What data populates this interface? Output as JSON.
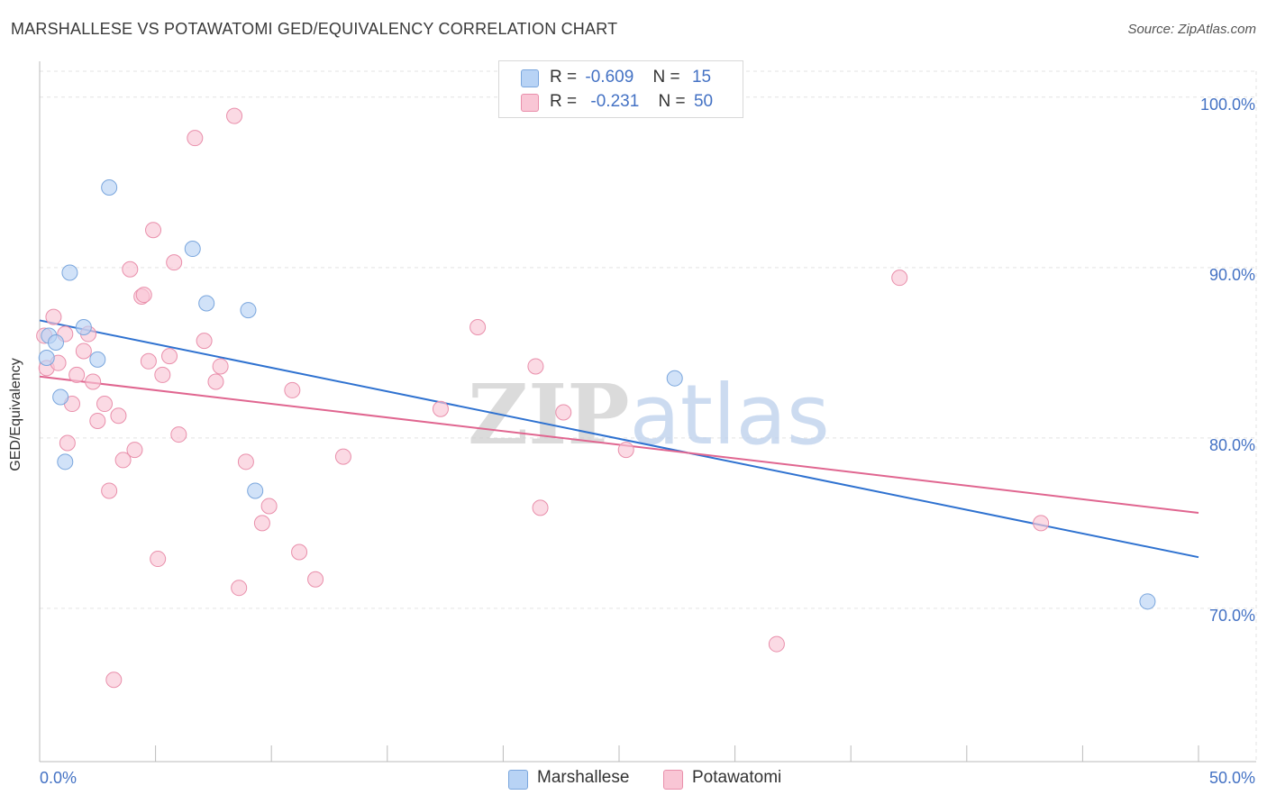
{
  "title": "MARSHALLESE VS POTAWATOMI GED/EQUIVALENCY CORRELATION CHART",
  "source": "Source: ZipAtlas.com",
  "watermark": "ZIPatlas",
  "colors": {
    "marshallese_fill": "#b8d3f5",
    "marshallese_stroke": "#7aa6dd",
    "marshallese_line": "#2f72d0",
    "potawatomi_fill": "#f9c6d5",
    "potawatomi_stroke": "#e98fab",
    "potawatomi_line": "#e06690",
    "axis_label": "#4472c4",
    "grid": "#e3e3e3"
  },
  "legend": {
    "marshallese": {
      "r_label": "R =",
      "r_value": "-0.609",
      "n_label": "N =",
      "n_value": "15"
    },
    "potawatomi": {
      "r_label": "R =",
      "r_value": "-0.231",
      "n_label": "N =",
      "n_value": "50"
    }
  },
  "bottom_legend": {
    "marshallese": "Marshallese",
    "potawatomi": "Potawatomi"
  },
  "chart_data": {
    "type": "scatter",
    "title": "MARSHALLESE VS POTAWATOMI GED/EQUIVALENCY CORRELATION CHART",
    "xlabel": "",
    "ylabel": "GED/Equivalency",
    "xlim": [
      0,
      50
    ],
    "ylim": [
      61.0,
      102.0
    ],
    "x_tick_labels": [
      "0.0%",
      "50.0%"
    ],
    "y_ticks": [
      70,
      80,
      90,
      100
    ],
    "y_tick_labels": [
      "70.0%",
      "80.0%",
      "90.0%",
      "100.0%"
    ],
    "grid": true,
    "legend_position": "top-center",
    "series": [
      {
        "name": "Marshallese",
        "points": [
          [
            0.4,
            86.0
          ],
          [
            0.7,
            85.6
          ],
          [
            0.3,
            84.7
          ],
          [
            0.9,
            82.4
          ],
          [
            1.1,
            78.6
          ],
          [
            1.3,
            89.7
          ],
          [
            1.9,
            86.5
          ],
          [
            2.5,
            84.6
          ],
          [
            3.0,
            94.7
          ],
          [
            6.6,
            91.1
          ],
          [
            7.2,
            87.9
          ],
          [
            9.0,
            87.5
          ],
          [
            9.3,
            76.9
          ],
          [
            27.4,
            83.5
          ],
          [
            47.8,
            70.4
          ]
        ],
        "trend": {
          "x0": 0,
          "y0": 86.9,
          "x1": 50,
          "y1": 73.0
        }
      },
      {
        "name": "Potawatomi",
        "points": [
          [
            0.2,
            86.0
          ],
          [
            0.3,
            84.1
          ],
          [
            0.6,
            87.1
          ],
          [
            0.8,
            84.4
          ],
          [
            1.1,
            86.1
          ],
          [
            1.2,
            79.7
          ],
          [
            1.4,
            82.0
          ],
          [
            1.6,
            83.7
          ],
          [
            1.9,
            85.1
          ],
          [
            2.1,
            86.1
          ],
          [
            2.3,
            83.3
          ],
          [
            2.5,
            81.0
          ],
          [
            2.8,
            82.0
          ],
          [
            3.0,
            76.9
          ],
          [
            3.2,
            65.8
          ],
          [
            3.4,
            81.3
          ],
          [
            3.6,
            78.7
          ],
          [
            3.9,
            89.9
          ],
          [
            4.1,
            79.3
          ],
          [
            4.4,
            88.3
          ],
          [
            4.7,
            84.5
          ],
          [
            4.9,
            92.2
          ],
          [
            5.1,
            72.9
          ],
          [
            5.3,
            83.7
          ],
          [
            5.6,
            84.8
          ],
          [
            5.8,
            90.3
          ],
          [
            6.0,
            80.2
          ],
          [
            6.7,
            97.6
          ],
          [
            7.1,
            85.7
          ],
          [
            7.6,
            83.3
          ],
          [
            7.8,
            84.2
          ],
          [
            8.4,
            98.9
          ],
          [
            8.6,
            71.2
          ],
          [
            8.9,
            78.6
          ],
          [
            9.6,
            75.0
          ],
          [
            9.9,
            76.0
          ],
          [
            10.9,
            82.8
          ],
          [
            11.2,
            73.3
          ],
          [
            11.9,
            71.7
          ],
          [
            13.1,
            78.9
          ],
          [
            17.3,
            81.7
          ],
          [
            18.9,
            86.5
          ],
          [
            21.4,
            84.2
          ],
          [
            21.6,
            75.9
          ],
          [
            22.6,
            81.5
          ],
          [
            25.3,
            79.3
          ],
          [
            31.8,
            67.9
          ],
          [
            37.1,
            89.4
          ],
          [
            43.2,
            75.0
          ],
          [
            4.5,
            88.4
          ]
        ],
        "trend": {
          "x0": 0,
          "y0": 83.6,
          "x1": 50,
          "y1": 75.6
        }
      }
    ]
  }
}
